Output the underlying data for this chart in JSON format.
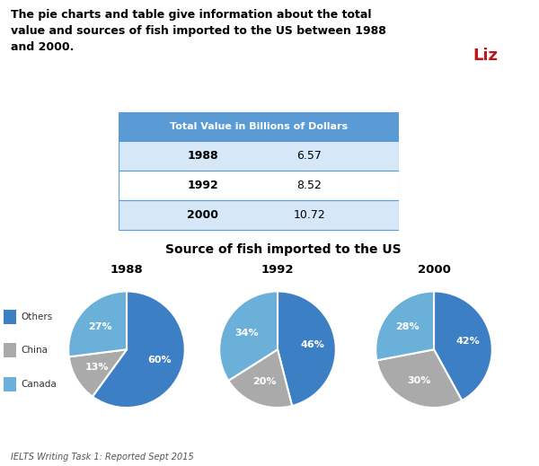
{
  "title_text": "The pie charts and table give information about the total\nvalue and sources of fish imported to the US between 1988\nand 2000.",
  "table_header": "Total Value in Billions of Dollars",
  "table_rows": [
    [
      "1988",
      "6.57"
    ],
    [
      "1992",
      "8.52"
    ],
    [
      "2000",
      "10.72"
    ]
  ],
  "pie_title": "Source of fish imported to the US",
  "pie_years": [
    "1988",
    "1992",
    "2000"
  ],
  "pie_data": [
    [
      60,
      13,
      27
    ],
    [
      46,
      20,
      34
    ],
    [
      42,
      30,
      28
    ]
  ],
  "legend_labels": [
    "Others",
    "China",
    "Canada"
  ],
  "pie_colors": [
    "#3D7FC4",
    "#AAAAAA",
    "#6BB0D8"
  ],
  "footer_text": "IELTS Writing Task 1: Reported Sept 2015",
  "ielts_bg": "#C0151A",
  "header_table_color": "#5B9BD5",
  "row_color_light": "#D6E8F7",
  "row_color_white": "#FFFFFF",
  "border_color": "#5B9BD5",
  "background_color": "#FFFFFF"
}
